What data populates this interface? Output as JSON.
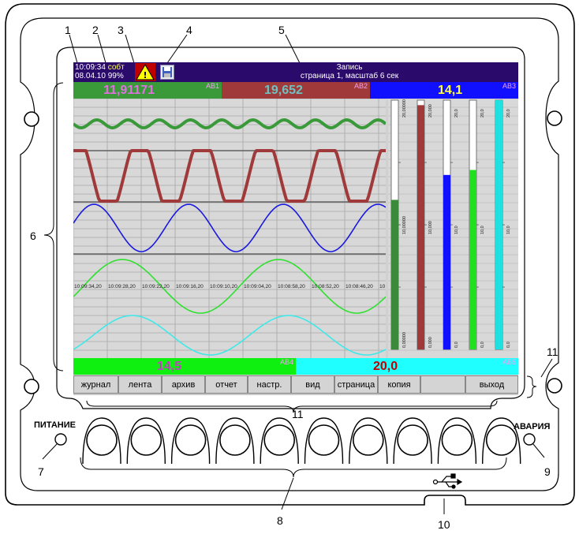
{
  "callouts": [
    "1",
    "2",
    "3",
    "4",
    "5",
    "6",
    "7",
    "8",
    "9",
    "10",
    "11",
    "11"
  ],
  "panel": {
    "power_label": "ПИТАНИЕ",
    "alarm_label": "АВАРИЯ"
  },
  "screen": {
    "time": "10:09:34",
    "date": "08.04.10",
    "event_label": "собт",
    "memory": "99%",
    "record_title": "Запись",
    "record_subtitle": "страница 1, масштаб 6 сек",
    "top_values": [
      {
        "value": "11,91171",
        "tag": "АВ1",
        "bg": "#3a9a3a",
        "fg": "#e070e0"
      },
      {
        "value": "19,652",
        "tag": "АВ2",
        "bg": "#a03a3a",
        "fg": "#70c0c0"
      },
      {
        "value": "14,1",
        "tag": "АВ3",
        "bg": "#1010ff",
        "fg": "#ffff40"
      }
    ],
    "bottom_values": [
      {
        "value": "14,5",
        "tag": "АВ4",
        "bg": "#10f010",
        "fg": "#c040c0"
      },
      {
        "value": "20,0",
        "tag": "АВ5",
        "bg": "#20ffff",
        "fg": "#c00000"
      }
    ],
    "time_axis": [
      "10:09:34,20",
      "10:09:28,20",
      "10:09:22,20",
      "10:09:16,20",
      "10:09:10,20",
      "10:09:04,20",
      "10:08:58,20",
      "10:08:52,20",
      "10:08:46,20",
      "10:0"
    ],
    "bar_scales": [
      {
        "top": "20,00000",
        "mid": "10,00000",
        "bottom": "0,00000",
        "color": "#3a8a3a",
        "level": 0.6
      },
      {
        "top": "20,000",
        "mid": "10,000",
        "bottom": "0,000",
        "color": "#a03a3a",
        "level": 0.98
      },
      {
        "top": "20,0",
        "mid": "10,0",
        "bottom": "0,0",
        "color": "#1010ff",
        "level": 0.7
      },
      {
        "top": "20,0",
        "mid": "10,0",
        "bottom": "0,0",
        "color": "#20e020",
        "level": 0.72
      },
      {
        "top": "20,0",
        "mid": "10,0",
        "bottom": "0,0",
        "color": "#20e0e0",
        "level": 1.0
      }
    ],
    "menu": [
      "журнал",
      "лента",
      "архив",
      "отчет",
      "настр.",
      "вид",
      "страница",
      "копия",
      "",
      "выход"
    ],
    "trace_colors": [
      "#3a9a3a",
      "#a03a3a",
      "#1a1ae0",
      "#30e030",
      "#40e8e8"
    ]
  }
}
